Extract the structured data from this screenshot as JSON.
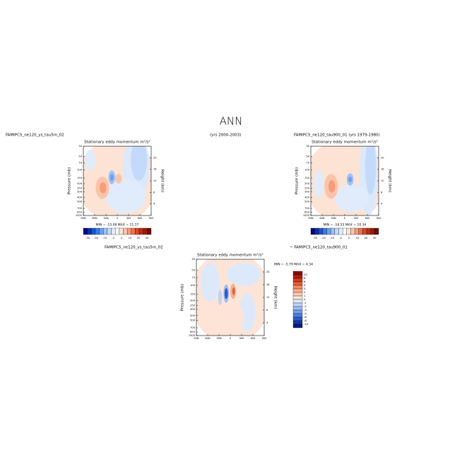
{
  "title": "ANN",
  "chart_data": [
    {
      "type": "contour",
      "left_label": "FAMIPC5_ne120_ys_tau5m_02",
      "center_label": "(yrs 2000-2003)",
      "title": "Stationary eddy momentum m²/s²",
      "ylabel": "Pressure (mb)",
      "y2label": "Height (km)",
      "xlim": [
        90,
        -90
      ],
      "xticks": [
        {
          "value": 90,
          "label": "90N"
        },
        {
          "value": 60,
          "label": "60N"
        },
        {
          "value": 30,
          "label": "30N"
        },
        0,
        {
          "value": -30,
          "label": "30S"
        },
        {
          "value": -60,
          "label": "60S"
        },
        {
          "value": -90,
          "label": "90S"
        }
      ],
      "ylim": [
        1000,
        30
      ],
      "log_y": true,
      "yticks": [
        30,
        50,
        70,
        100,
        150,
        200,
        250,
        300,
        400,
        500,
        700,
        850,
        1000
      ],
      "y2lim": [
        0,
        24
      ],
      "y2ticks": [
        4,
        8,
        12,
        16,
        20
      ],
      "min_max": "MIN = -15.08   MAX =  11.17",
      "colorbar_orientation": "horizontal",
      "colorbar_colors": [
        "#08088c",
        "#0b2fb0",
        "#1a55d6",
        "#3b7be8",
        "#6a9ff2",
        "#9cc3f7",
        "#c4dafa",
        "#e0ecfc",
        "#ffffff",
        "#fde3d3",
        "#fbc4a8",
        "#f79d77",
        "#f07148",
        "#e0461f",
        "#c02a0f",
        "#9a1a08",
        "#6e0b04"
      ],
      "colorbar_labels": [
        -30,
        -20,
        -10,
        -2,
        2,
        10,
        20,
        30
      ]
    },
    {
      "type": "contour",
      "left_label": "FAMIPC5_ne120_tau900_01 (yrs 1979-1980)",
      "title": "Stationary eddy momentum m²/s²",
      "ylabel": "Pressure (mb)",
      "y2label": "Height (km)",
      "xlim": [
        90,
        -90
      ],
      "xticks": [
        {
          "value": 90,
          "label": "90N"
        },
        {
          "value": 60,
          "label": "60N"
        },
        {
          "value": 30,
          "label": "30N"
        },
        0,
        {
          "value": -30,
          "label": "30S"
        },
        {
          "value": -60,
          "label": "60S"
        },
        {
          "value": -90,
          "label": "90S"
        }
      ],
      "ylim": [
        1000,
        30
      ],
      "log_y": true,
      "yticks": [
        30,
        50,
        70,
        100,
        150,
        200,
        250,
        300,
        400,
        500,
        700,
        850,
        1000
      ],
      "y2lim": [
        0,
        24
      ],
      "y2ticks": [
        4,
        8,
        12,
        16,
        20
      ],
      "min_max": "MIN = -16.55   MAX =  10.34",
      "colorbar_orientation": "horizontal",
      "colorbar_colors": [
        "#08088c",
        "#0b2fb0",
        "#1a55d6",
        "#3b7be8",
        "#6a9ff2",
        "#9cc3f7",
        "#c4dafa",
        "#e0ecfc",
        "#ffffff",
        "#fde3d3",
        "#fbc4a8",
        "#f79d77",
        "#f07148",
        "#e0461f",
        "#c02a0f",
        "#9a1a08",
        "#6e0b04"
      ],
      "colorbar_labels": [
        -30,
        -20,
        -10,
        -2,
        2,
        10,
        20,
        30
      ]
    },
    {
      "type": "contour",
      "left_label": "FAMIPC5_ne120_ys_tau5m_02",
      "right_label": "~ FAMIPC5_ne120_tau900_01",
      "title": "Stationary eddy momentum m²/s²",
      "ylabel": "Pressure (mb)",
      "y2label": "Height (km)",
      "xlim": [
        90,
        -90
      ],
      "xticks": [
        {
          "value": 90,
          "label": "90N"
        },
        {
          "value": 60,
          "label": "60N"
        },
        {
          "value": 30,
          "label": "30N"
        },
        0,
        {
          "value": -30,
          "label": "30S"
        },
        {
          "value": -60,
          "label": "60S"
        },
        {
          "value": -90,
          "label": "90S"
        }
      ],
      "ylim": [
        1000,
        30
      ],
      "log_y": true,
      "yticks": [
        30,
        50,
        70,
        100,
        150,
        200,
        250,
        300,
        400,
        500,
        700,
        850,
        1000
      ],
      "y2lim": [
        0,
        24
      ],
      "y2ticks": [
        4,
        8,
        12,
        16,
        20
      ],
      "min_max": "MIN =  -5.79   MAX =   4.34",
      "colorbar_orientation": "vertical",
      "colorbar_colors": [
        "#8c0a05",
        "#b51d0c",
        "#d63a1a",
        "#eb5e34",
        "#f58a5e",
        "#f9ae8c",
        "#fccbb3",
        "#fde4d6",
        "#dce9fb",
        "#bcd4f7",
        "#98bdf3",
        "#6f9fee",
        "#4a7fe4",
        "#2a5ccf",
        "#1538a8",
        "#0a1a80"
      ],
      "colorbar_labels": [
        10,
        8,
        6,
        4,
        3,
        2,
        1,
        0,
        -1,
        -2,
        -3,
        -4,
        -6,
        -8,
        -10
      ]
    }
  ]
}
